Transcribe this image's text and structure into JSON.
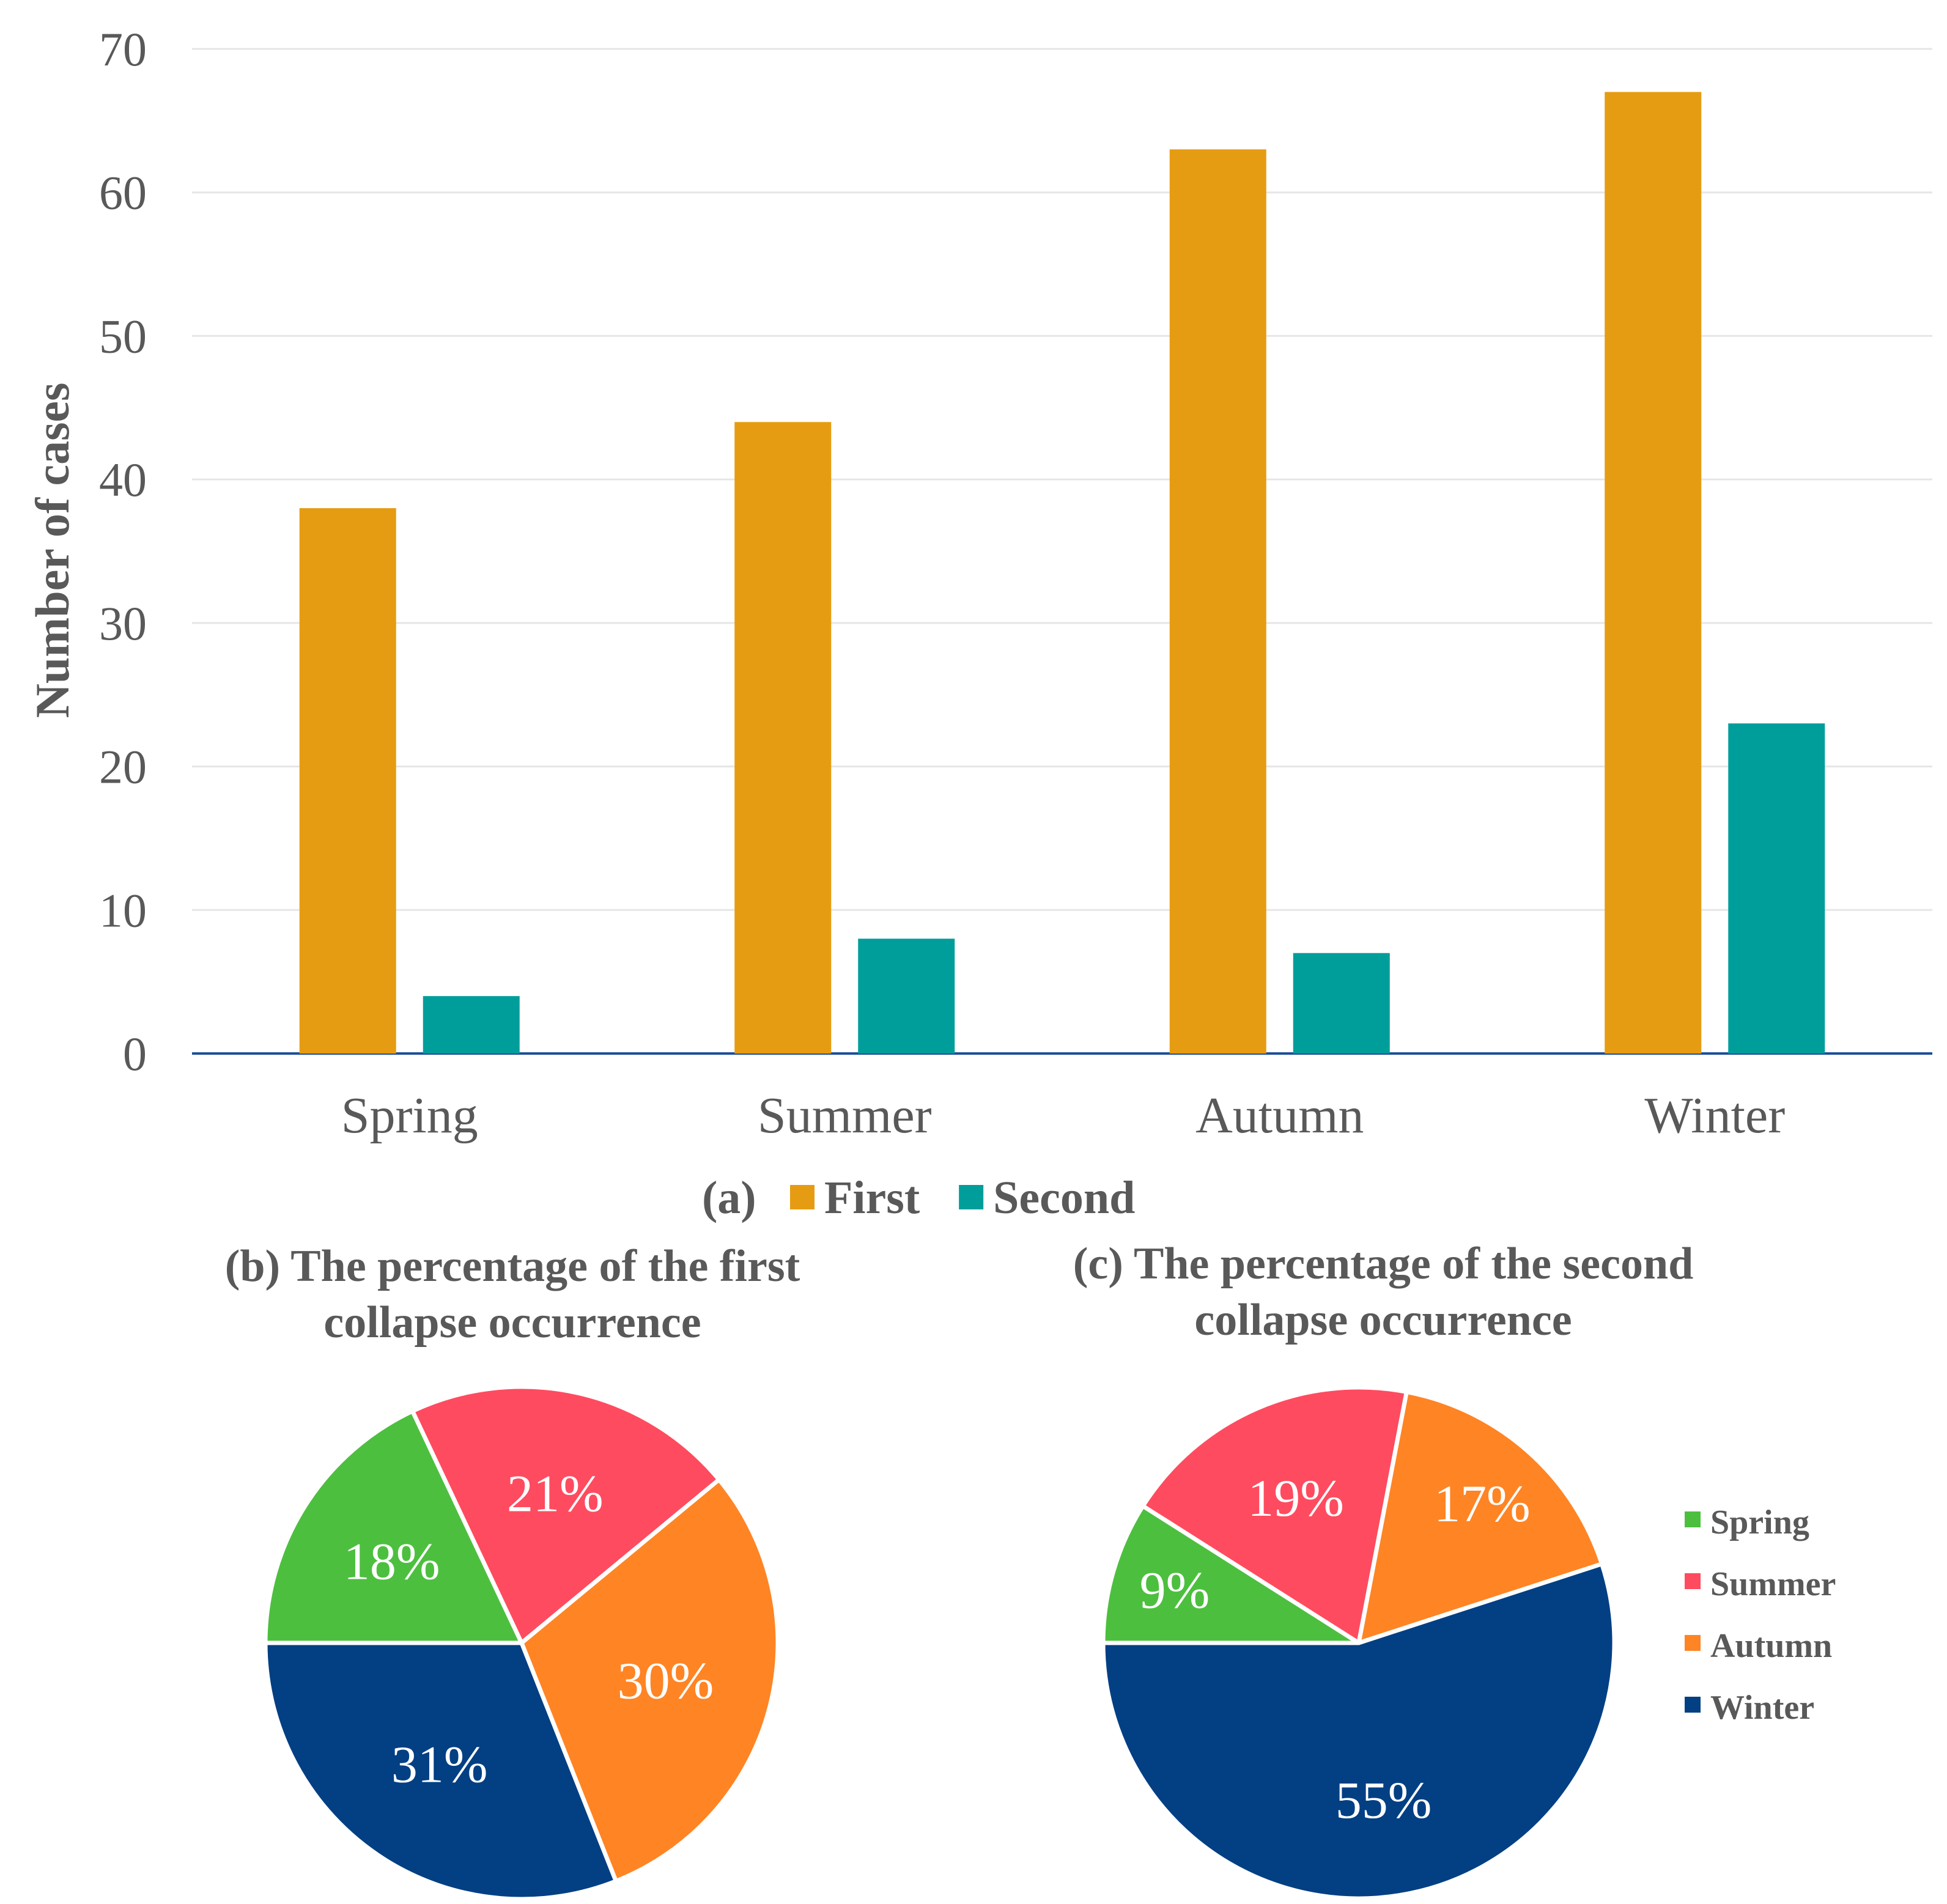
{
  "chart_data": [
    {
      "type": "bar",
      "panel_label": "(a)",
      "categories": [
        "Spring",
        "Summer",
        "Autumn",
        "Winter"
      ],
      "series": [
        {
          "name": "First",
          "values": [
            38,
            44,
            63,
            67
          ],
          "color": "#E69C12"
        },
        {
          "name": "Second",
          "values": [
            4,
            8,
            7,
            23
          ],
          "color": "#009E9B"
        }
      ],
      "ylabel": "Number of cases",
      "ylim": [
        0,
        70
      ],
      "yticks": [
        0,
        10,
        20,
        30,
        40,
        50,
        60,
        70
      ],
      "grid": true,
      "legend": "bottom"
    },
    {
      "type": "pie",
      "title_lines": [
        "(b) The percentage of the first",
        "collapse occurrence"
      ],
      "slices": [
        {
          "name": "Spring",
          "value": 18,
          "label": "18%",
          "color": "#4DBF3F"
        },
        {
          "name": "Summer",
          "value": 21,
          "label": "21%",
          "color": "#FF4B5F"
        },
        {
          "name": "Autumn",
          "value": 30,
          "label": "30%",
          "color": "#FF8424"
        },
        {
          "name": "Winter",
          "value": 31,
          "label": "31%",
          "color": "#023F83"
        }
      ]
    },
    {
      "type": "pie",
      "title_lines": [
        "(c) The percentage of the second",
        "collapse occurrence"
      ],
      "slices": [
        {
          "name": "Spring",
          "value": 9,
          "label": "9%",
          "color": "#4DBF3F"
        },
        {
          "name": "Summer",
          "value": 19,
          "label": "19%",
          "color": "#FF4B5F"
        },
        {
          "name": "Autumn",
          "value": 17,
          "label": "17%",
          "color": "#FF8424"
        },
        {
          "name": "Winter",
          "value": 55,
          "label": "55%",
          "color": "#023F83"
        }
      ],
      "legend": "right"
    }
  ]
}
